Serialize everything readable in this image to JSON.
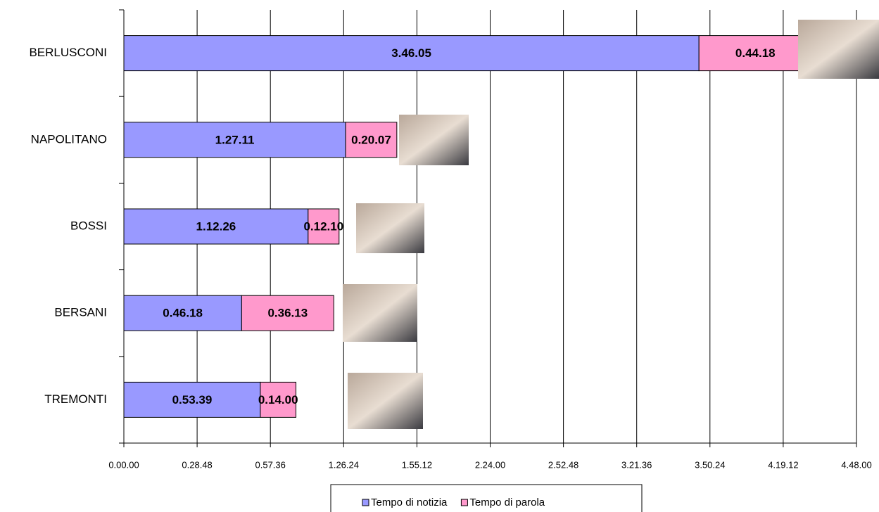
{
  "chart_data": {
    "type": "stacked-bar-horizontal",
    "categories": [
      "BERLUSCONI",
      "NAPOLITANO",
      "BOSSI",
      "BERSANI",
      "TREMONTI"
    ],
    "series": [
      {
        "name": "Tempo di notizia",
        "color": "#9999ff",
        "values": [
          13565,
          5231,
          4346,
          2778,
          3219
        ],
        "value_labels": [
          "3.46.05",
          "1.27.11",
          "1.12.26",
          "0.46.18",
          "0.53.39"
        ]
      },
      {
        "name": "Tempo di parola",
        "color": "#ff99cc",
        "values": [
          2658,
          1207,
          730,
          2173,
          840
        ],
        "value_labels": [
          "0.44.18",
          "0.20.07",
          "0.12.10",
          "0.36.13",
          "0.14.00"
        ]
      }
    ],
    "xlim": [
      0,
      17280
    ],
    "xticks": [
      {
        "value": 0,
        "label": "0.00.00"
      },
      {
        "value": 1728,
        "label": "0.28.48"
      },
      {
        "value": 3456,
        "label": "0.57.36"
      },
      {
        "value": 5184,
        "label": "1.26.24"
      },
      {
        "value": 6912,
        "label": "1.55.12"
      },
      {
        "value": 8640,
        "label": "2.24.00"
      },
      {
        "value": 10368,
        "label": "2.52.48"
      },
      {
        "value": 12096,
        "label": "3.21.36"
      },
      {
        "value": 13824,
        "label": "3.50.24"
      },
      {
        "value": 15552,
        "label": "4.19.12"
      },
      {
        "value": 17280,
        "label": "4.48.00"
      }
    ],
    "grid": true
  }
}
